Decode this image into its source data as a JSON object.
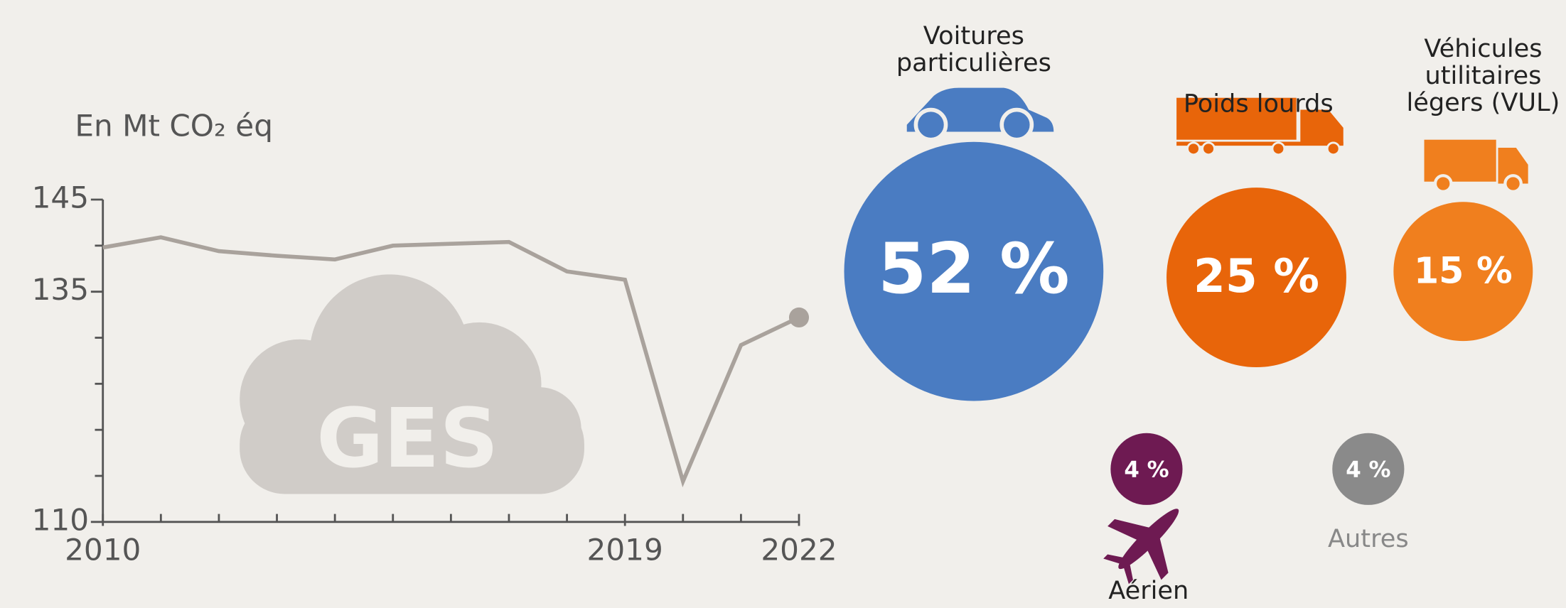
{
  "chart_data": [
    {
      "type": "line",
      "title": "En Mt CO₂ éq",
      "annotation": "GES",
      "x": [
        2010,
        2011,
        2012,
        2013,
        2014,
        2015,
        2016,
        2017,
        2018,
        2019,
        2020,
        2021,
        2022
      ],
      "values": [
        139.8,
        140.9,
        139.4,
        138.9,
        138.5,
        140.0,
        140.2,
        140.4,
        137.2,
        136.3,
        114.4,
        129.2,
        132.2
      ],
      "color": "#a9a29c",
      "xlim": [
        2010,
        2022
      ],
      "xticks": [
        2010,
        2019,
        2022
      ],
      "xminorticks": [
        2011,
        2012,
        2013,
        2014,
        2015,
        2016,
        2017,
        2018,
        2020,
        2021
      ],
      "ylim": [
        110,
        145
      ],
      "yticks": [
        110,
        135,
        145
      ],
      "yminorticks": [
        115,
        120,
        125,
        130,
        140
      ]
    },
    {
      "type": "bubble",
      "categories": [
        "Voitures particulières",
        "Poids lourds",
        "Véhicules utilitaires légers (VUL)",
        "Aérien",
        "Autres"
      ],
      "values": [
        52,
        25,
        15,
        4,
        4
      ],
      "value_labels": [
        "52 %",
        "25 %",
        "15 %",
        "4 %",
        "4 %"
      ],
      "colors": [
        "#4a7cc2",
        "#e8650a",
        "#f07f1e",
        "#6e1a52",
        "#8a8a8a"
      ]
    }
  ]
}
